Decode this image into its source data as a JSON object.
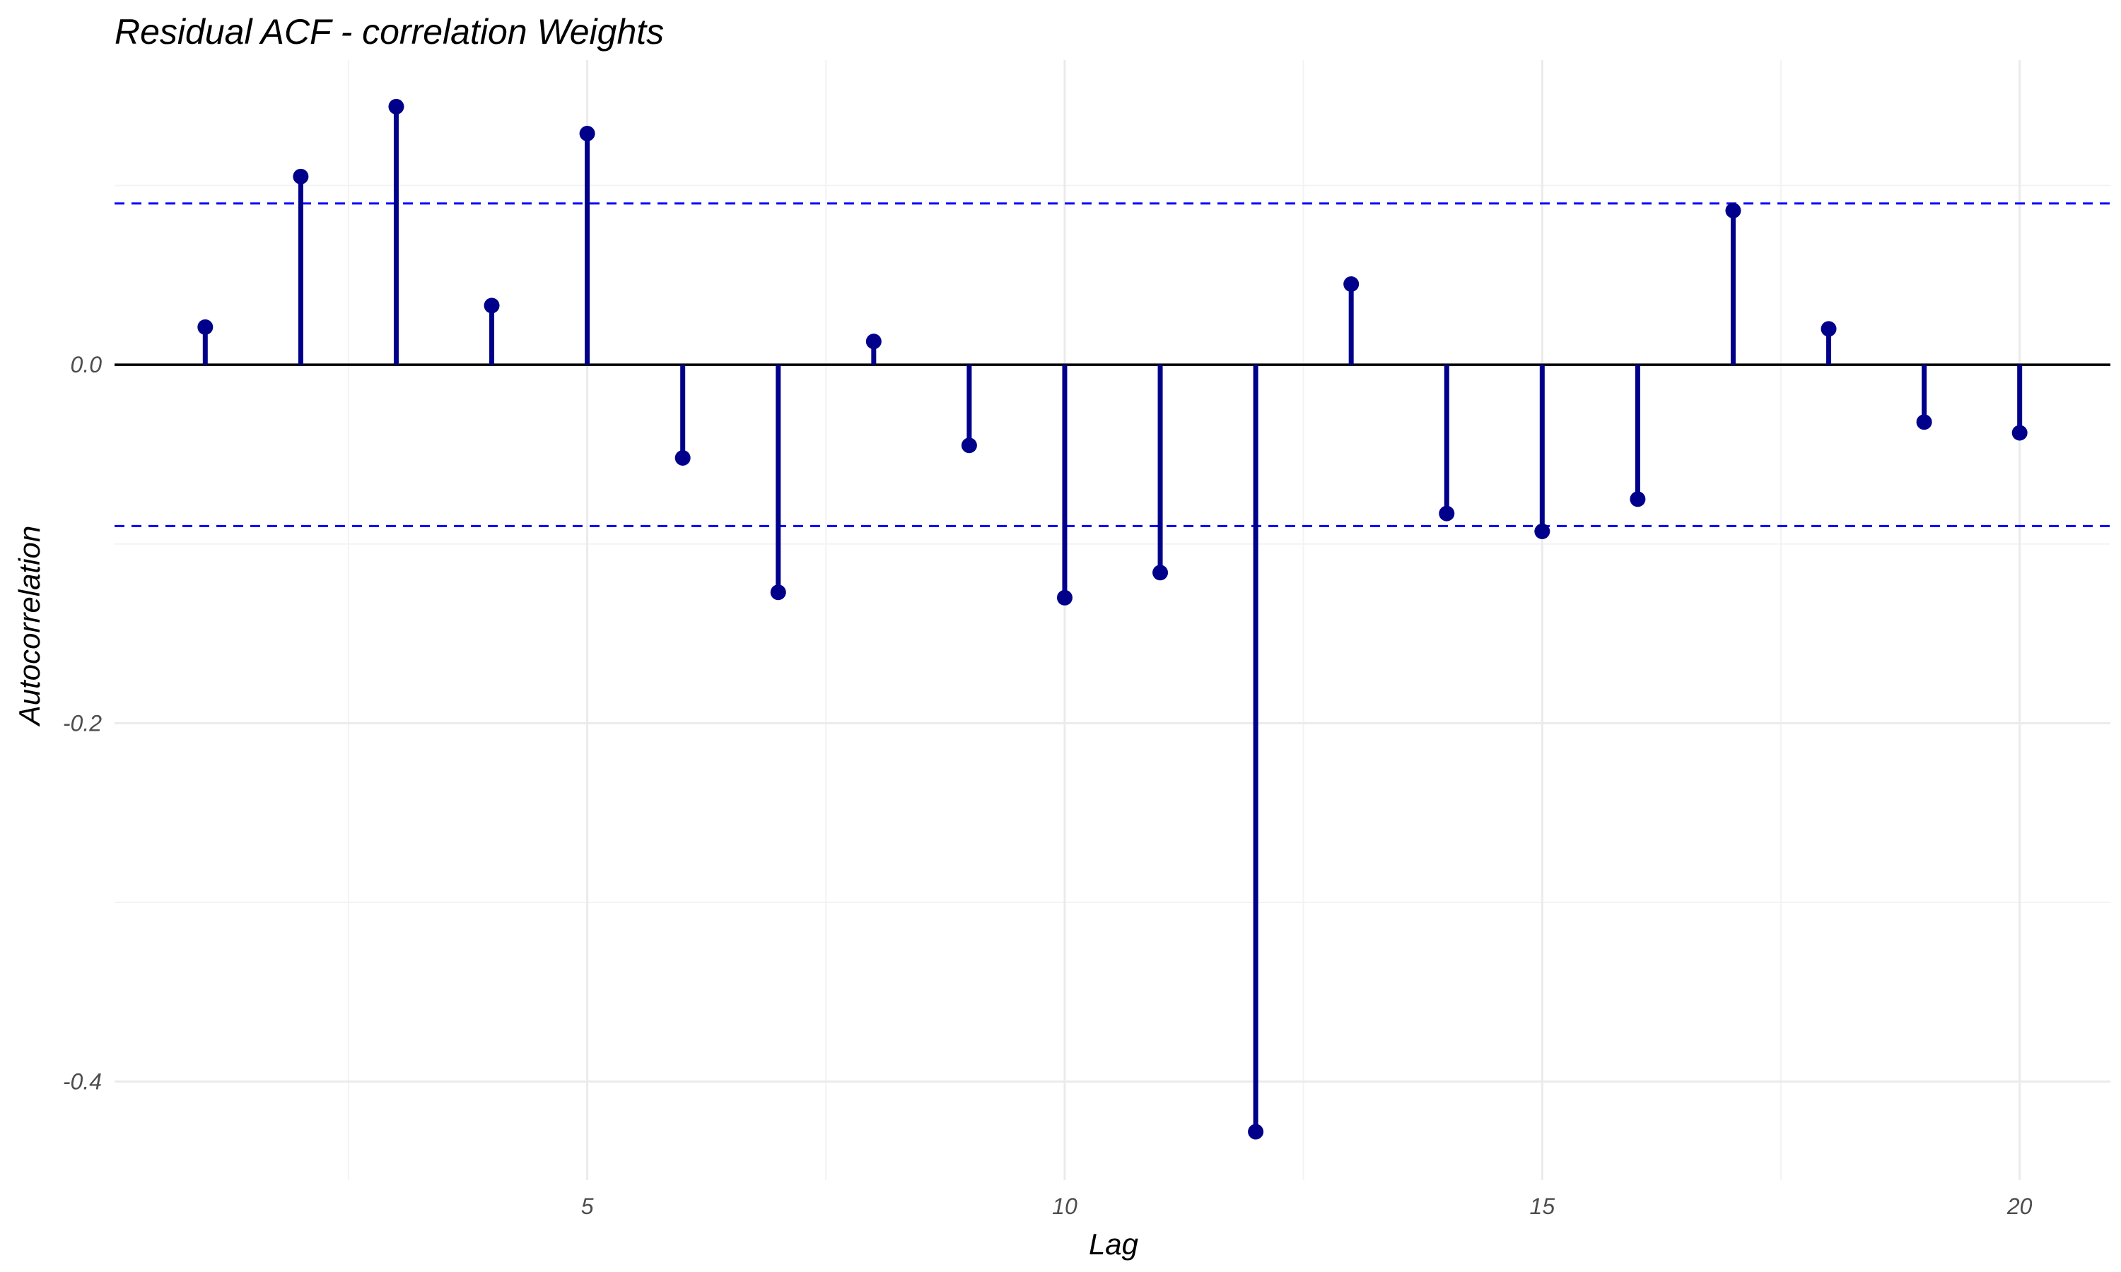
{
  "chart_data": {
    "type": "lollipop",
    "title": "Residual ACF - correlation Weights",
    "xlabel": "Lag",
    "ylabel": "Autocorrelation",
    "x": [
      1,
      2,
      3,
      4,
      5,
      6,
      7,
      8,
      9,
      10,
      11,
      12,
      13,
      14,
      15,
      16,
      17,
      18,
      19,
      20
    ],
    "values": [
      0.021,
      0.105,
      0.144,
      0.033,
      0.129,
      -0.052,
      -0.127,
      0.013,
      -0.045,
      -0.13,
      -0.116,
      -0.428,
      0.045,
      -0.083,
      -0.093,
      -0.075,
      0.086,
      0.02,
      -0.032,
      -0.038
    ],
    "confidence_bounds": [
      0.09,
      -0.09
    ],
    "xlim": [
      0.05,
      20.95
    ],
    "ylim": [
      -0.455,
      0.17
    ],
    "x_ticks": [
      5,
      10,
      15,
      20
    ],
    "x_tick_labels": [
      "5",
      "10",
      "15",
      "20"
    ],
    "y_ticks": [
      0.0,
      -0.2,
      -0.4
    ],
    "y_tick_labels": [
      "0.0",
      "-0.2",
      "-0.4"
    ],
    "grid": true,
    "colors": {
      "stem": "#00008B",
      "bound": "#0000FF",
      "zero_line": "#000000",
      "grid_major": "#EBEBEB",
      "grid_minor": "#F3F3F3"
    }
  }
}
